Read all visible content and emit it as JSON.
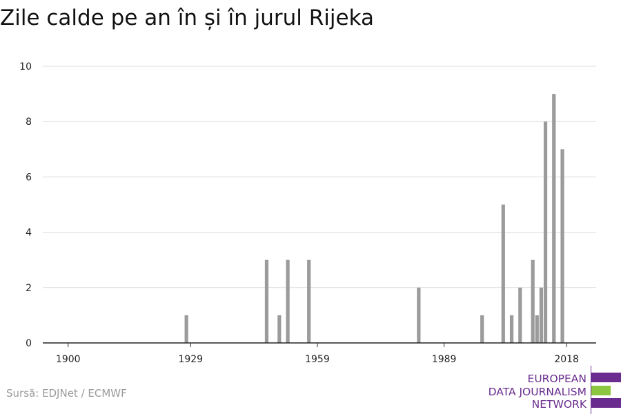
{
  "chart_data": {
    "type": "bar",
    "title": "Zile calde pe an în și în jurul Rijeka",
    "xlabel": "",
    "ylabel": "",
    "xlim": [
      1894,
      2025
    ],
    "ylim": [
      0,
      10
    ],
    "y_ticks": [
      0,
      2,
      4,
      6,
      8,
      10
    ],
    "x_ticks": [
      1900,
      1929,
      1959,
      1989,
      2018
    ],
    "grid": true,
    "legend": "none",
    "bar_color": "#9b9b9b",
    "x": [
      1928,
      1947,
      1950,
      1952,
      1957,
      1983,
      1998,
      2003,
      2005,
      2007,
      2010,
      2011,
      2012,
      2013,
      2015,
      2017
    ],
    "values": [
      1,
      3,
      1,
      3,
      3,
      2,
      1,
      5,
      1,
      2,
      3,
      1,
      2,
      8,
      9,
      7
    ]
  },
  "source": "Sursă: EDJNet / ECMWF",
  "logo": {
    "lines": [
      "EUROPEAN",
      "DATA JOURNALISM",
      "NETWORK"
    ],
    "color": "#6a2d8f",
    "accent": "#8dc63f"
  }
}
